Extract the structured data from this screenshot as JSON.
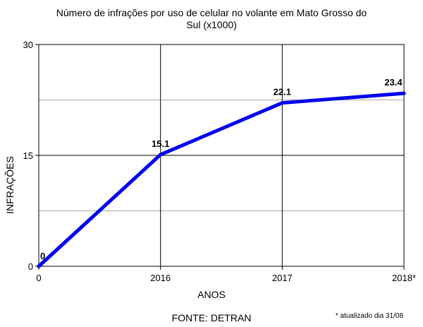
{
  "chart_data": {
    "type": "line",
    "title_line1": "Número de infrações por uso de celular no volante em Mato Grosso do",
    "title_line2": "Sul (x1000)",
    "xlabel": "ANOS",
    "ylabel": "INFRAÇÕES",
    "categories": [
      "0",
      "2016",
      "2017",
      "2018*"
    ],
    "values": [
      0,
      15.1,
      22.1,
      23.4
    ],
    "data_labels": [
      "0",
      "15.1",
      "22.1",
      "23.4"
    ],
    "y_ticks": [
      0,
      15,
      30
    ],
    "y_minor_gridlines": [
      7.5,
      22.5
    ],
    "ylim": [
      0,
      30
    ],
    "grid": true,
    "line_color": "#0000ee",
    "source": "FONTE: DETRAN",
    "footnote": "* atualizado dia 31/08"
  }
}
